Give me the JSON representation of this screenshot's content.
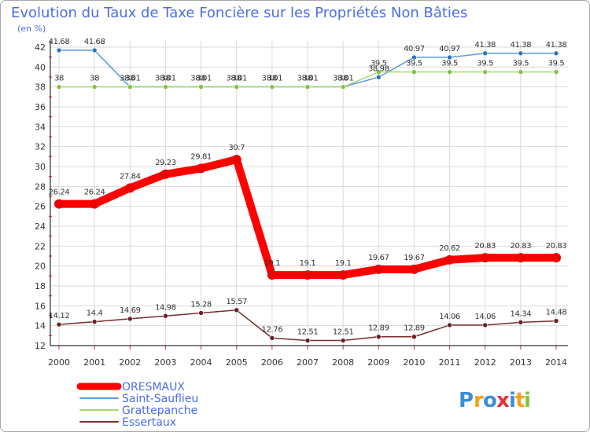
{
  "chart_data": {
    "type": "line",
    "title": "Evolution du Taux de Taxe Foncière sur les Propriétés Non Bâties",
    "subtitle": "(en %)",
    "xlabel": "",
    "ylabel": "(en %)",
    "x": [
      "2000",
      "2001",
      "2002",
      "2003",
      "2004",
      "2005",
      "2006",
      "2007",
      "2008",
      "2009",
      "2010",
      "2011",
      "2012",
      "2013",
      "2014"
    ],
    "ylim": [
      12,
      42
    ],
    "yticks": [
      "12",
      "14",
      "16",
      "18",
      "20",
      "22",
      "24",
      "26",
      "28",
      "30",
      "32",
      "34",
      "36",
      "38",
      "40",
      "42"
    ],
    "series": [
      {
        "name": "Saint-Sauflieu",
        "color": "#5b9bd5",
        "marker": "#2e75b6",
        "values": [
          41.68,
          41.68,
          38.01,
          38.01,
          38.01,
          38.01,
          38.01,
          38.01,
          38.01,
          38.98,
          40.97,
          40.97,
          41.38,
          41.38,
          41.38
        ],
        "labels": [
          "41.68",
          "41.68",
          "38.01",
          "38.01",
          "38.01",
          "38.01",
          "38.01",
          "38.01",
          "38.01",
          "38.98",
          "40.97",
          "40.97",
          "41.38",
          "41.38",
          "41.38"
        ]
      },
      {
        "name": "Grattepanche",
        "color": "#a3d977",
        "marker": "#7cc542",
        "values": [
          38,
          38,
          38,
          38,
          38,
          38,
          38,
          38,
          38,
          39.5,
          39.5,
          39.5,
          39.5,
          39.5,
          39.5
        ],
        "labels": [
          "38",
          "38",
          "38",
          "38",
          "38",
          "38",
          "38",
          "38",
          "38",
          "39.5",
          "39.5",
          "39.5",
          "39.5",
          "39.5",
          "39.5"
        ]
      },
      {
        "name": "ORESMAUX",
        "color": "#ff0000",
        "marker": "#ee0000",
        "values": [
          26.24,
          26.24,
          27.84,
          29.23,
          29.81,
          30.7,
          19.1,
          19.1,
          19.1,
          19.67,
          19.67,
          20.62,
          20.83,
          20.83,
          20.83
        ],
        "labels": [
          "26.24",
          "26.24",
          "27.84",
          "29.23",
          "29.81",
          "30.7",
          "19.1",
          "19.1",
          "19.1",
          "19.67",
          "19.67",
          "20.62",
          "20.83",
          "20.83",
          "20.83"
        ]
      },
      {
        "name": "Essertaux",
        "color": "#7b2c2c",
        "marker": "#6b1f1f",
        "values": [
          14.12,
          14.4,
          14.69,
          14.98,
          15.28,
          15.57,
          12.76,
          12.51,
          12.51,
          12.89,
          12.89,
          14.06,
          14.06,
          14.34,
          14.48
        ],
        "labels": [
          "14.12",
          "14.4",
          "14.69",
          "14.98",
          "15.28",
          "15.57",
          "12.76",
          "12.51",
          "12.51",
          "12.89",
          "12.89",
          "14.06",
          "14.06",
          "14.34",
          "14.48"
        ]
      }
    ],
    "legend": [
      {
        "name": "ORESMAUX",
        "color": "#ff0000"
      },
      {
        "name": "Saint-Sauflieu",
        "color": "#5b9bd5"
      },
      {
        "name": "Grattepanche",
        "color": "#a3d977"
      },
      {
        "name": "Essertaux",
        "color": "#7b2c2c"
      }
    ],
    "legend_position": "bottom-left",
    "grid": true
  },
  "logo": {
    "letters": [
      "P",
      "r",
      "o",
      "x",
      "i",
      "t",
      "i"
    ],
    "colors": [
      "#3a8fd6",
      "#f2a31b",
      "#3a8fd6",
      "#e8303a",
      "#3a8fd6",
      "#f2a31b",
      "#7cc542"
    ]
  }
}
